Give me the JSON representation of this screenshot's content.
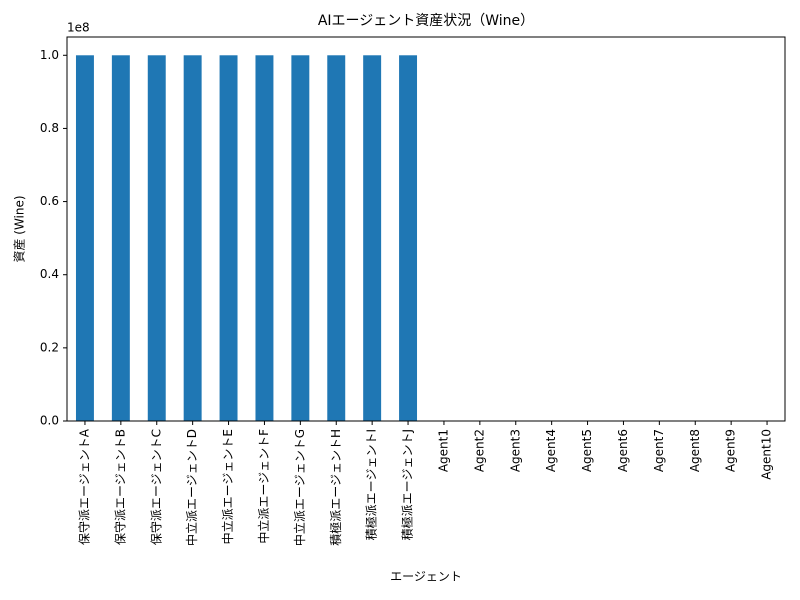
{
  "chart_data": {
    "type": "bar",
    "title": "AIエージェント資産状況（Wine）",
    "x_label": "エージェント",
    "y_label": "資産 (Wine)",
    "y_offset_label": "1e8",
    "categories": [
      "保守派エージェントA",
      "保守派エージェントB",
      "保守派エージェントC",
      "中立派エージェントD",
      "中立派エージェントE",
      "中立派エージェントF",
      "中立派エージェントG",
      "積極派エージェントH",
      "積極派エージェントI",
      "積極派エージェントJ",
      "Agent1",
      "Agent2",
      "Agent3",
      "Agent4",
      "Agent5",
      "Agent6",
      "Agent7",
      "Agent8",
      "Agent9",
      "Agent10"
    ],
    "values": [
      100000000,
      100000000,
      100000000,
      100000000,
      100000000,
      100000000,
      100000000,
      100000000,
      100000000,
      100000000,
      0,
      0,
      0,
      0,
      0,
      0,
      0,
      0,
      0,
      0
    ],
    "color": "#1f77b4",
    "ylim": [
      0,
      105000000
    ],
    "yticks": [
      {
        "value": 0,
        "label": "0.0"
      },
      {
        "value": 20000000,
        "label": "0.2"
      },
      {
        "value": 40000000,
        "label": "0.4"
      },
      {
        "value": 60000000,
        "label": "0.6"
      },
      {
        "value": 80000000,
        "label": "0.8"
      },
      {
        "value": 100000000,
        "label": "1.0"
      }
    ],
    "grid": false
  }
}
